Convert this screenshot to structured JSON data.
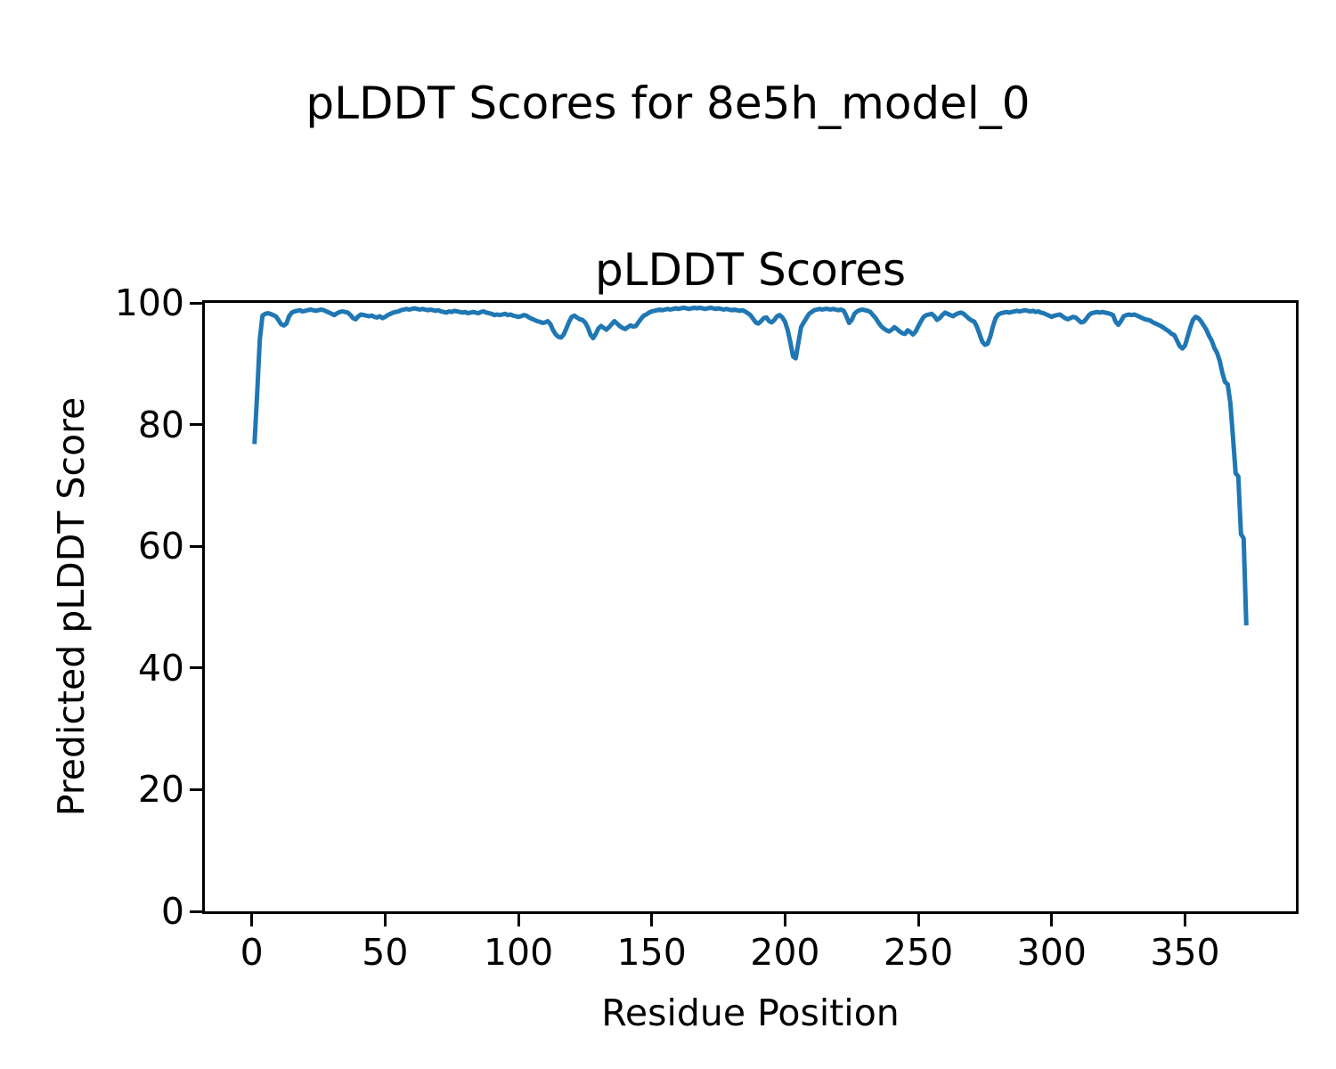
{
  "figure": {
    "title": "pLDDT Scores for 8e5h_model_0"
  },
  "chart_data": {
    "type": "line",
    "title": "pLDDT Scores",
    "xlabel": "Residue Position",
    "ylabel": "Predicted pLDDT Score",
    "xlim": [
      -17.6,
      391.6
    ],
    "ylim": [
      0,
      100
    ],
    "xticks": [
      0,
      50,
      100,
      150,
      200,
      250,
      300,
      350
    ],
    "yticks": [
      0,
      20,
      40,
      60,
      80,
      100
    ],
    "grid": false,
    "legend_position": "none",
    "line_color": "#1f77b4",
    "line_width": 5,
    "x_start": 1,
    "x_step": 1,
    "values": [
      76.8,
      85.0,
      94.0,
      97.9,
      98.2,
      98.3,
      98.2,
      98.0,
      97.8,
      97.2,
      96.5,
      96.3,
      96.6,
      97.8,
      98.4,
      98.6,
      98.7,
      98.8,
      98.6,
      98.7,
      98.8,
      98.9,
      98.8,
      98.7,
      98.8,
      98.9,
      98.8,
      98.6,
      98.4,
      98.2,
      98.0,
      98.3,
      98.5,
      98.6,
      98.5,
      98.4,
      98.0,
      97.5,
      97.3,
      97.8,
      98.1,
      98.0,
      97.9,
      97.8,
      97.9,
      97.7,
      97.6,
      97.8,
      97.5,
      97.7,
      98.0,
      98.2,
      98.4,
      98.5,
      98.6,
      98.8,
      98.9,
      99.0,
      98.9,
      99.0,
      99.1,
      99.0,
      98.9,
      99.0,
      98.9,
      98.8,
      98.9,
      98.8,
      98.7,
      98.8,
      98.6,
      98.5,
      98.4,
      98.6,
      98.5,
      98.7,
      98.6,
      98.5,
      98.4,
      98.5,
      98.3,
      98.4,
      98.5,
      98.4,
      98.3,
      98.5,
      98.6,
      98.4,
      98.3,
      98.2,
      98.0,
      98.1,
      98.0,
      98.1,
      98.2,
      98.0,
      98.1,
      97.9,
      97.8,
      97.7,
      97.8,
      98.0,
      97.9,
      97.6,
      97.4,
      97.2,
      97.0,
      96.9,
      96.7,
      96.8,
      97.0,
      96.5,
      95.5,
      94.8,
      94.4,
      94.3,
      94.8,
      95.8,
      96.9,
      97.7,
      97.9,
      97.6,
      97.3,
      97.2,
      96.8,
      96.0,
      94.8,
      94.2,
      94.9,
      95.8,
      96.2,
      95.9,
      95.6,
      96.0,
      96.5,
      97.0,
      96.6,
      96.2,
      95.9,
      95.7,
      96.0,
      96.3,
      96.1,
      96.2,
      96.8,
      97.4,
      97.9,
      98.1,
      98.4,
      98.6,
      98.7,
      98.8,
      98.9,
      98.8,
      98.9,
      99.0,
      98.9,
      99.0,
      99.1,
      99.0,
      99.1,
      99.2,
      99.1,
      99.0,
      99.1,
      99.2,
      99.1,
      99.2,
      99.1,
      99.0,
      99.1,
      99.2,
      99.1,
      99.0,
      99.1,
      99.0,
      98.9,
      99.0,
      98.9,
      98.8,
      98.9,
      98.8,
      98.7,
      98.8,
      98.6,
      98.3,
      98.0,
      97.4,
      96.8,
      96.6,
      97.0,
      97.5,
      97.6,
      97.0,
      96.8,
      97.2,
      97.8,
      98.0,
      97.6,
      96.9,
      95.5,
      93.5,
      91.2,
      90.9,
      93.5,
      96.0,
      96.8,
      97.5,
      98.2,
      98.5,
      98.8,
      98.9,
      99.0,
      98.9,
      99.0,
      99.0,
      98.9,
      99.0,
      98.9,
      98.8,
      98.9,
      98.7,
      97.8,
      96.7,
      97.2,
      98.2,
      98.6,
      98.8,
      98.9,
      98.8,
      98.7,
      98.5,
      98.0,
      97.5,
      96.8,
      96.2,
      95.8,
      95.5,
      95.3,
      95.6,
      96.0,
      95.7,
      95.3,
      95.0,
      94.9,
      95.5,
      95.2,
      94.8,
      95.3,
      96.2,
      97.0,
      97.7,
      98.0,
      98.1,
      98.2,
      97.8,
      97.2,
      97.5,
      98.0,
      98.4,
      98.2,
      98.0,
      97.8,
      98.1,
      98.3,
      98.4,
      98.2,
      97.8,
      97.4,
      97.1,
      96.9,
      96.0,
      94.8,
      93.6,
      93.1,
      93.3,
      94.5,
      96.2,
      97.5,
      98.1,
      98.3,
      98.4,
      98.5,
      98.4,
      98.5,
      98.6,
      98.7,
      98.6,
      98.7,
      98.8,
      98.7,
      98.6,
      98.7,
      98.5,
      98.6,
      98.4,
      98.3,
      98.1,
      97.9,
      97.7,
      97.9,
      98.0,
      98.1,
      97.8,
      97.5,
      97.3,
      97.5,
      97.7,
      97.6,
      97.2,
      96.8,
      96.9,
      97.4,
      98.0,
      98.3,
      98.4,
      98.5,
      98.4,
      98.5,
      98.4,
      98.3,
      98.2,
      98.0,
      96.9,
      96.4,
      97.0,
      97.8,
      98.0,
      98.1,
      98.0,
      98.1,
      97.9,
      97.7,
      97.5,
      97.3,
      97.2,
      97.1,
      96.8,
      96.6,
      96.4,
      96.2,
      95.9,
      95.6,
      95.3,
      94.9,
      94.7,
      93.8,
      92.9,
      92.5,
      93.0,
      94.5,
      96.0,
      97.2,
      97.7,
      97.5,
      97.0,
      96.3,
      95.6,
      94.6,
      93.8,
      92.6,
      91.8,
      90.5,
      88.5,
      87.0,
      86.6,
      83.5,
      78.0,
      72.0,
      71.5,
      62.0,
      61.3,
      47.0
    ]
  }
}
